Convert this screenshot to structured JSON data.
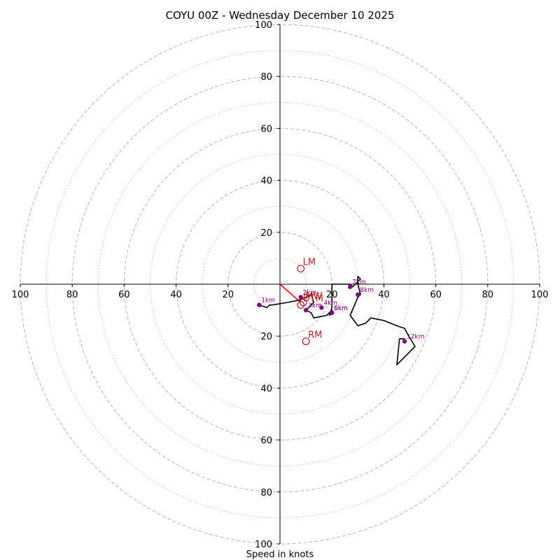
{
  "chart_data": {
    "type": "hodograph",
    "title": "COYU 00Z - Wednesday December 10 2025",
    "xlabel": "Speed in knots",
    "ylabel": "",
    "xlim": [
      -100,
      100
    ],
    "ylim": [
      -100,
      100
    ],
    "ring_major": [
      20,
      40,
      60,
      80,
      100
    ],
    "ring_minor": [
      10,
      30,
      50,
      70,
      90
    ],
    "x_tick_labels": [
      "100",
      "80",
      "60",
      "40",
      "20",
      "20",
      "40",
      "60",
      "80",
      "100"
    ],
    "x_tick_values": [
      -100,
      -80,
      -60,
      -40,
      -20,
      20,
      40,
      60,
      80,
      100
    ],
    "y_tick_labels": [
      "100",
      "80",
      "60",
      "40",
      "20",
      "20",
      "40",
      "60",
      "80",
      "100"
    ],
    "y_tick_values": [
      100,
      80,
      60,
      40,
      20,
      -20,
      -40,
      -60,
      -80,
      -100
    ],
    "colors": {
      "trace": "#000000",
      "height_markers": "#800080",
      "storm_motion": "#b22222",
      "shear_vector": "#ff0000",
      "grid": "#bbbbbb",
      "axes": "#000000"
    },
    "hodograph_trace": {
      "name": "wind profile",
      "u": [
        -8,
        -5,
        -4,
        -3,
        3,
        8,
        10,
        12,
        13,
        10,
        12,
        13,
        18,
        20,
        20,
        19,
        20,
        20,
        27,
        28,
        31,
        30,
        30,
        31,
        30,
        27,
        30,
        33,
        35,
        40,
        45,
        48,
        49,
        52,
        48,
        45,
        46,
        48
      ],
      "v": [
        -8,
        -9,
        -8,
        -8,
        -7,
        -6,
        -5,
        -4,
        -7,
        -10,
        -11,
        -13,
        -12,
        -10,
        -11,
        -12,
        -9,
        0,
        0,
        -1,
        2,
        3,
        0,
        -4,
        -5,
        -12,
        -16,
        -15,
        -13,
        -14,
        -16,
        -17,
        -19,
        -24,
        -28,
        -31,
        -21,
        -21
      ]
    },
    "height_markers": [
      {
        "label": "1km",
        "u": -8,
        "v": -8
      },
      {
        "label": "2km",
        "u": 8,
        "v": -5
      },
      {
        "label": "3km",
        "u": 10,
        "v": -10
      },
      {
        "label": "4km",
        "u": 16,
        "v": -9
      },
      {
        "label": "5km",
        "u": 20,
        "v": -11
      },
      {
        "label": "6km",
        "u": 20,
        "v": -11
      },
      {
        "label": "7km",
        "u": 27,
        "v": -1
      },
      {
        "label": "8km",
        "u": 30,
        "v": -4
      },
      {
        "label": "12km",
        "u": 48,
        "v": -22
      }
    ],
    "storm_motions": [
      {
        "label": "LM",
        "u": 8,
        "v": 6
      },
      {
        "label": "RM",
        "u": 10,
        "v": -22
      },
      {
        "label": "MW",
        "u": 9,
        "v": -7
      },
      {
        "label": "DTM",
        "u": 8,
        "v": -8
      }
    ],
    "shear_vector": {
      "from_u": 0,
      "from_v": 0,
      "to_u": 8,
      "to_v": -7
    }
  }
}
